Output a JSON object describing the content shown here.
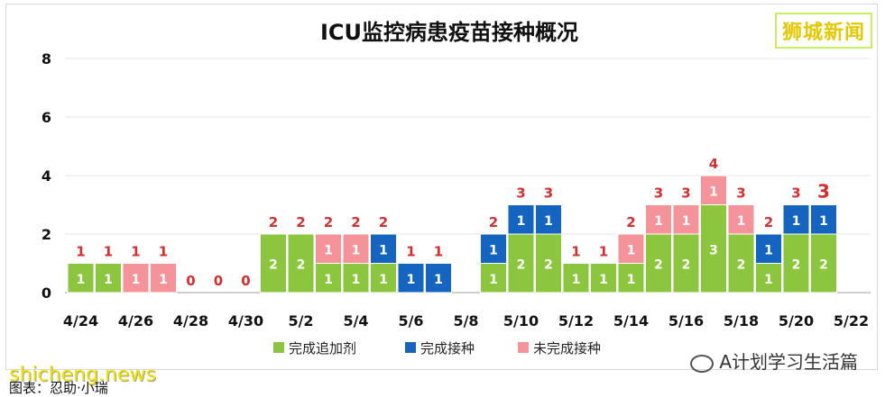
{
  "badge": "狮城新闻",
  "footer": {
    "site": "shicheng.news",
    "credit": "图表：忍助·小瑞",
    "wechat": "A计划学习生活篇",
    "wechat_icon": "wechat-icon"
  },
  "chart_data": {
    "type": "bar",
    "stacked": true,
    "title": "ICU监控病患疫苗接种概况",
    "xlabel": "",
    "ylabel": "",
    "ylim": [
      0,
      8
    ],
    "yticks": [
      "0",
      "2",
      "4",
      "6",
      "8"
    ],
    "grid": true,
    "legend": "bottom",
    "categories": [
      "4/24",
      "4/25",
      "4/26",
      "4/27",
      "4/28",
      "4/29",
      "4/30",
      "5/1",
      "5/2",
      "5/3",
      "5/4",
      "5/5",
      "5/6",
      "5/7",
      "5/8",
      "5/9",
      "5/10",
      "5/11",
      "5/12",
      "5/13",
      "5/14",
      "5/15",
      "5/16",
      "5/17",
      "5/18",
      "5/19",
      "5/20",
      "5/21",
      "5/22"
    ],
    "xtick_labels": [
      "4/24",
      "4/26",
      "4/28",
      "4/30",
      "5/2",
      "5/4",
      "5/6",
      "5/8",
      "5/10",
      "5/12",
      "5/14",
      "5/16",
      "5/18",
      "5/20",
      "5/22"
    ],
    "series": [
      {
        "name": "完成追加剂",
        "color": "#8cc63f",
        "values": [
          1,
          1,
          0,
          0,
          0,
          0,
          0,
          2,
          2,
          1,
          1,
          1,
          0,
          0,
          0,
          1,
          2,
          2,
          1,
          1,
          1,
          2,
          2,
          3,
          2,
          1,
          2,
          2,
          0
        ]
      },
      {
        "name": "完成接种",
        "color": "#1565c0",
        "values": [
          0,
          0,
          0,
          0,
          0,
          0,
          0,
          0,
          0,
          0,
          0,
          1,
          1,
          1,
          0,
          1,
          1,
          1,
          0,
          0,
          0,
          0,
          0,
          0,
          0,
          1,
          1,
          1,
          0
        ]
      },
      {
        "name": "未完成接种",
        "color": "#f4939a",
        "values": [
          0,
          0,
          1,
          1,
          0,
          0,
          0,
          0,
          0,
          1,
          1,
          0,
          0,
          0,
          0,
          0,
          0,
          0,
          0,
          0,
          1,
          1,
          1,
          1,
          1,
          0,
          0,
          0,
          0
        ]
      }
    ],
    "totals": [
      1,
      1,
      1,
      1,
      0,
      0,
      0,
      2,
      2,
      2,
      2,
      2,
      1,
      1,
      0,
      2,
      3,
      3,
      1,
      1,
      2,
      3,
      3,
      4,
      3,
      2,
      3,
      3,
      0
    ],
    "totals_shown": [
      "1",
      "1",
      "1",
      "1",
      "0",
      "0",
      "0",
      "2",
      "2",
      "2",
      "2",
      "2",
      "1",
      "1",
      "",
      "2",
      "3",
      "3",
      "1",
      "1",
      "2",
      "3",
      "3",
      "4",
      "3",
      "2",
      "3",
      "3",
      ""
    ],
    "total_label_color": "#d32f2f"
  }
}
